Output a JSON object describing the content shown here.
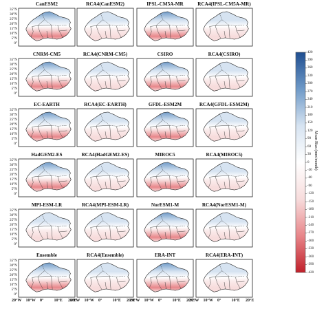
{
  "panels": [
    [
      "CanESM2",
      "RCA4(CanESM2)",
      "IPSL-CM5A-MR",
      "RCA4(IPSL-CM5A-MR)"
    ],
    [
      "CNRM-CM5",
      "RCA4(CNRM-CM5)",
      "CSIRO",
      "RCA4(CSIRO)"
    ],
    [
      "EC-EARTH",
      "RCA4(EC-EARTH)",
      "GFDL-ESM2M",
      "RCA4(GFDL-ESM2M)"
    ],
    [
      "HadGEM2-ES",
      "RCA4(HadGEM2-ES)",
      "MIROC5",
      "RCA4(MIROC5)"
    ],
    [
      "MPI-ESM-LR",
      "RCA4(MPI-ESM-LR)",
      "NorESM1-M",
      "RCA4(NorESM1-M)"
    ],
    [
      "Ensemble",
      "RCA4(Ensemble)",
      "ERA-INT",
      "RCA4(ERA-INT)"
    ]
  ],
  "bias_strength": [
    [
      1.0,
      0.35,
      1.0,
      0.3
    ],
    [
      0.8,
      0.4,
      1.0,
      0.35
    ],
    [
      0.7,
      0.35,
      0.9,
      0.3
    ],
    [
      0.85,
      0.4,
      1.0,
      0.4
    ],
    [
      0.6,
      0.3,
      0.8,
      0.35
    ],
    [
      0.7,
      0.3,
      0.75,
      0.3
    ]
  ],
  "lat_labels": [
    "35°N",
    "30°N",
    "25°N",
    "20°N",
    "15°N",
    "10°N",
    "5°N",
    "0°"
  ],
  "lon_labels": [
    "20°W",
    "10°W",
    "0°",
    "10°E",
    "20°E"
  ],
  "colorbar": {
    "title": "Mean Bias (mm/month)",
    "ticks": [
      "420",
      "390",
      "360",
      "330",
      "300",
      "270",
      "240",
      "210",
      "180",
      "150",
      "120",
      "90",
      "60",
      "30",
      "0",
      "-30",
      "-60",
      "-90",
      "-120",
      "-150",
      "-180",
      "-210",
      "-240",
      "-270",
      "-300",
      "-330",
      "-360",
      "-390",
      "-420"
    ],
    "range": [
      -420,
      420
    ],
    "colors": [
      "#c0202a",
      "#e8868a",
      "#f7dcdc",
      "#ffffff",
      "#d6e3f1",
      "#6f9ac8",
      "#1f4e90"
    ]
  }
}
